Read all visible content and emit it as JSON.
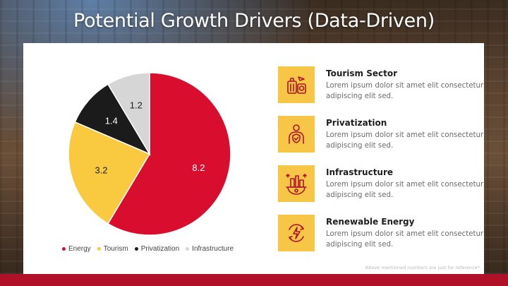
{
  "slide": {
    "title": "Potential Growth Drivers (Data-Driven)",
    "footnote": "Above mentioned numbers are just for reference*."
  },
  "chart_data": {
    "type": "pie",
    "categories": [
      "Energy",
      "Tourism",
      "Privatization",
      "Infrastructure"
    ],
    "values": [
      8.2,
      3.2,
      1.4,
      1.2
    ],
    "data_labels": [
      "8.2",
      "3.2",
      "1.4",
      "1.2"
    ],
    "colors": [
      "#d90e2f",
      "#f9c93f",
      "#1b1b1b",
      "#d6d6d6"
    ],
    "label_colors": [
      "#ffffff",
      "#1e1e1e",
      "#ffffff",
      "#1e1e1e"
    ],
    "legend_position": "bottom",
    "start_angle_deg": 0,
    "direction": "clockwise"
  },
  "drivers": [
    {
      "title": "Tourism Sector",
      "desc": "Lorem ipsum dolor sit amet elit consectetur adipiscing elit sed.",
      "icon": "luggage-icon"
    },
    {
      "title": "Privatization",
      "desc": "Lorem ipsum dolor sit amet elit consectetur adipiscing elit sed.",
      "icon": "person-shield-icon"
    },
    {
      "title": "Infrastructure",
      "desc": "Lorem ipsum dolor sit amet elit consectetur adipiscing elit sed.",
      "icon": "factory-gear-icon"
    },
    {
      "title": "Renewable Energy",
      "desc": "Lorem ipsum dolor sit amet elit consectetur adipiscing elit sed.",
      "icon": "energy-cycle-icon"
    }
  ],
  "colors": {
    "accent_red": "#b01028",
    "icon_tile": "#f7c646",
    "icon_stroke": "#b3122b"
  }
}
